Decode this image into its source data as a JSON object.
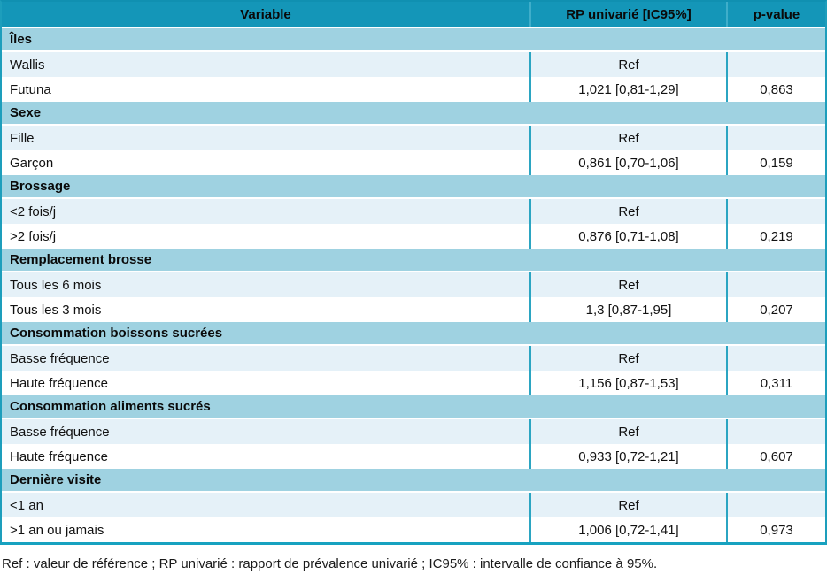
{
  "table": {
    "columns": [
      "Variable",
      "RP univarié [IC95%]",
      "p-value"
    ],
    "sections": [
      {
        "title": "Îles",
        "rows": [
          {
            "label": "Wallis",
            "rp": "Ref",
            "p": ""
          },
          {
            "label": "Futuna",
            "rp": "1,021 [0,81-1,29]",
            "p": "0,863"
          }
        ]
      },
      {
        "title": "Sexe",
        "rows": [
          {
            "label": "Fille",
            "rp": "Ref",
            "p": ""
          },
          {
            "label": "Garçon",
            "rp": "0,861 [0,70-1,06]",
            "p": "0,159"
          }
        ]
      },
      {
        "title": "Brossage",
        "rows": [
          {
            "label": "<2 fois/j",
            "rp": "Ref",
            "p": ""
          },
          {
            "label": ">2 fois/j",
            "rp": "0,876 [0,71-1,08]",
            "p": "0,219"
          }
        ]
      },
      {
        "title": "Remplacement brosse",
        "rows": [
          {
            "label": "Tous les 6 mois",
            "rp": "Ref",
            "p": ""
          },
          {
            "label": "Tous les 3 mois",
            "rp": "1,3 [0,87-1,95]",
            "p": "0,207"
          }
        ]
      },
      {
        "title": "Consommation boissons sucrées",
        "rows": [
          {
            "label": "Basse fréquence",
            "rp": "Ref",
            "p": ""
          },
          {
            "label": "Haute fréquence",
            "rp": "1,156 [0,87-1,53]",
            "p": "0,311"
          }
        ]
      },
      {
        "title": "Consommation aliments sucrés",
        "rows": [
          {
            "label": "Basse fréquence",
            "rp": "Ref",
            "p": ""
          },
          {
            "label": "Haute fréquence",
            "rp": "0,933 [0,72-1,21]",
            "p": "0,607"
          }
        ]
      },
      {
        "title": "Dernière visite",
        "rows": [
          {
            "label": "<1 an",
            "rp": "Ref",
            "p": ""
          },
          {
            "label": ">1 an ou jamais",
            "rp": "1,006 [0,72-1,41]",
            "p": "0,973"
          }
        ]
      }
    ]
  },
  "footnote": "Ref : valeur de référence ; RP univarié : rapport de prévalence univarié ; IC95% : intervalle de confiance à 95%.",
  "colors": {
    "header": "#1496B8",
    "section_band": "#9FD2E1",
    "row_light": "#E5F1F8",
    "row_white": "#FFFFFF",
    "separator": "#2BA5C2"
  }
}
